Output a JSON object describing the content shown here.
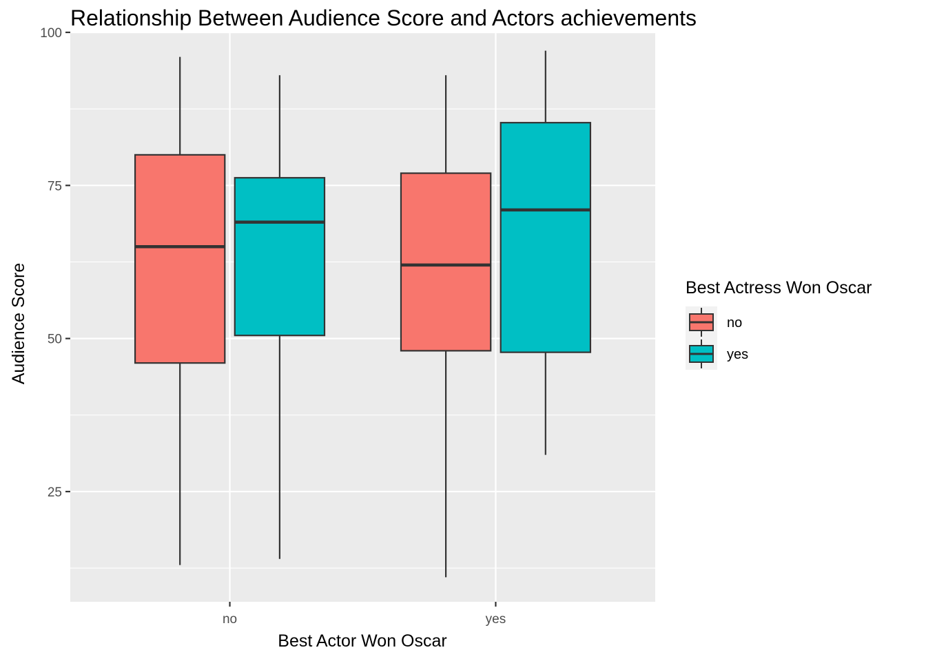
{
  "chart_data": {
    "type": "boxplot",
    "title": "Relationship Between Audience Score and Actors achievements",
    "xlabel": "Best Actor Won Oscar",
    "ylabel": "Audience Score",
    "categories": [
      "no",
      "yes"
    ],
    "ylim": [
      7,
      100
    ],
    "yticks": [
      25,
      50,
      75,
      100
    ],
    "grid": true,
    "legend": {
      "title": "Best Actress Won Oscar",
      "position": "right",
      "entries": [
        {
          "label": "no",
          "color": "#F8766D"
        },
        {
          "label": "yes",
          "color": "#00BFC4"
        }
      ]
    },
    "series": [
      {
        "name": "no",
        "color": "#F8766D",
        "boxes": [
          {
            "category": "no",
            "min": 13,
            "q1": 46,
            "median": 65,
            "q3": 80,
            "max": 96
          },
          {
            "category": "yes",
            "min": 11,
            "q1": 48,
            "median": 62,
            "q3": 77,
            "max": 93
          }
        ]
      },
      {
        "name": "yes",
        "color": "#00BFC4",
        "boxes": [
          {
            "category": "no",
            "min": 14,
            "q1": 50.5,
            "median": 69,
            "q3": 76.25,
            "max": 93
          },
          {
            "category": "yes",
            "min": 31,
            "q1": 47.75,
            "median": 71,
            "q3": 85.25,
            "max": 97
          }
        ]
      }
    ]
  }
}
